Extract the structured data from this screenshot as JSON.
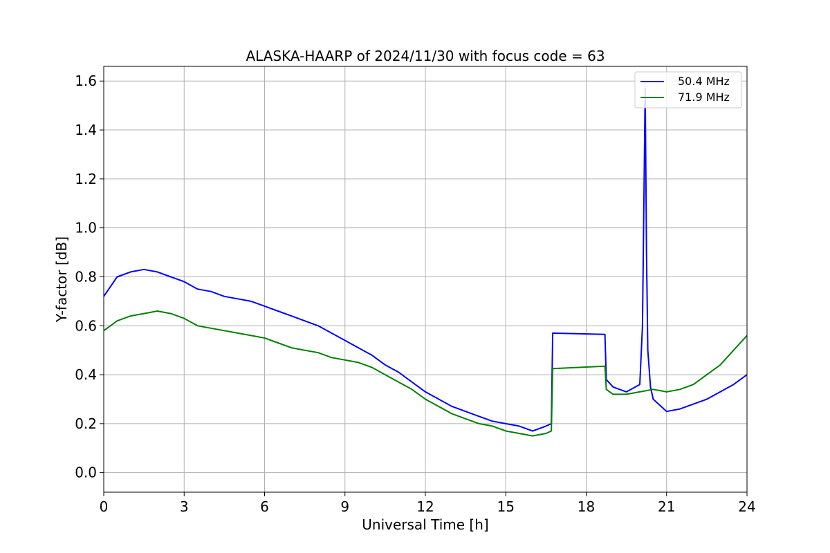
{
  "chart_data": {
    "type": "line",
    "title": "ALASKA-HAARP of 2024/11/30 with focus code = 63",
    "xlabel": "Universal Time [h]",
    "ylabel": "Y-factor [dB]",
    "xlim": [
      0,
      24
    ],
    "ylim": [
      -0.08,
      1.66
    ],
    "xticks": [
      0,
      3,
      6,
      9,
      12,
      15,
      18,
      21,
      24
    ],
    "xtick_labels": [
      "0",
      "3",
      "6",
      "9",
      "12",
      "15",
      "18",
      "21",
      "24"
    ],
    "yticks": [
      0.0,
      0.2,
      0.4,
      0.6,
      0.8,
      1.0,
      1.2,
      1.4,
      1.6
    ],
    "ytick_labels": [
      "0.0",
      "0.2",
      "0.4",
      "0.6",
      "0.8",
      "1.0",
      "1.2",
      "1.4",
      "1.6"
    ],
    "grid": true,
    "legend_position": "top-right",
    "series": [
      {
        "name": "50.4 MHz",
        "color": "#0000ff",
        "x": [
          0,
          0.5,
          1,
          1.5,
          2,
          2.5,
          3,
          3.5,
          4,
          4.5,
          5,
          5.5,
          6,
          6.5,
          7,
          7.5,
          8,
          8.5,
          9,
          9.5,
          10,
          10.5,
          11,
          11.5,
          12,
          12.5,
          13,
          13.5,
          14,
          14.5,
          15,
          15.5,
          16,
          16.5,
          16.7,
          16.75,
          18.7,
          18.75,
          19,
          19.5,
          20,
          20.1,
          20.2,
          20.25,
          20.3,
          20.4,
          20.5,
          21,
          21.5,
          22,
          22.5,
          23,
          23.5,
          24
        ],
        "y": [
          0.72,
          0.8,
          0.82,
          0.83,
          0.82,
          0.8,
          0.78,
          0.75,
          0.74,
          0.72,
          0.71,
          0.7,
          0.68,
          0.66,
          0.64,
          0.62,
          0.6,
          0.57,
          0.54,
          0.51,
          0.48,
          0.44,
          0.41,
          0.37,
          0.33,
          0.3,
          0.27,
          0.25,
          0.23,
          0.21,
          0.2,
          0.19,
          0.17,
          0.19,
          0.2,
          0.57,
          0.565,
          0.38,
          0.35,
          0.33,
          0.36,
          0.6,
          1.57,
          0.9,
          0.5,
          0.35,
          0.3,
          0.25,
          0.26,
          0.28,
          0.3,
          0.33,
          0.36,
          0.4
        ]
      },
      {
        "name": "71.9 MHz",
        "color": "#008000",
        "x": [
          0,
          0.5,
          1,
          1.5,
          2,
          2.5,
          3,
          3.5,
          4,
          4.5,
          5,
          5.5,
          6,
          6.5,
          7,
          7.5,
          8,
          8.5,
          9,
          9.5,
          10,
          10.5,
          11,
          11.5,
          12,
          12.5,
          13,
          13.5,
          14,
          14.5,
          15,
          15.5,
          16,
          16.5,
          16.7,
          16.75,
          18.7,
          18.75,
          19,
          19.5,
          20,
          20.5,
          21,
          21.5,
          22,
          22.5,
          23,
          23.5,
          24
        ],
        "y": [
          0.58,
          0.62,
          0.64,
          0.65,
          0.66,
          0.65,
          0.63,
          0.6,
          0.59,
          0.58,
          0.57,
          0.56,
          0.55,
          0.53,
          0.51,
          0.5,
          0.49,
          0.47,
          0.46,
          0.45,
          0.43,
          0.4,
          0.37,
          0.34,
          0.3,
          0.27,
          0.24,
          0.22,
          0.2,
          0.19,
          0.17,
          0.16,
          0.15,
          0.16,
          0.17,
          0.425,
          0.435,
          0.34,
          0.32,
          0.32,
          0.33,
          0.34,
          0.33,
          0.34,
          0.36,
          0.4,
          0.44,
          0.5,
          0.56
        ]
      }
    ]
  }
}
